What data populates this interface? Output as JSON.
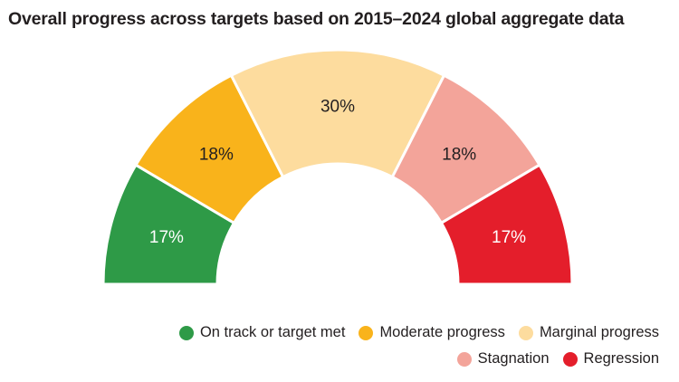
{
  "title": "Overall progress across targets based on 2015–2024 global aggregate data",
  "chart_data": {
    "type": "pie",
    "style": "half-donut",
    "unit": "%",
    "categories": [
      "On track or target met",
      "Moderate progress",
      "Marginal progress",
      "Stagnation",
      "Regression"
    ],
    "values": [
      17,
      18,
      30,
      18,
      17
    ],
    "labels": [
      "17%",
      "18%",
      "30%",
      "18%",
      "17%"
    ],
    "colors": [
      "#2e9a47",
      "#f9b31b",
      "#fddc9e",
      "#f3a49a",
      "#e41e2b"
    ],
    "label_colors": [
      "#ffffff",
      "#231f20",
      "#231f20",
      "#231f20",
      "#ffffff"
    ],
    "legend_position": "bottom-right",
    "legend": {
      "row1": [
        {
          "label": "On track or target met",
          "color": "#2e9a47"
        },
        {
          "label": "Moderate progress",
          "color": "#f9b31b"
        },
        {
          "label": "Marginal progress",
          "color": "#fddc9e"
        }
      ],
      "row2": [
        {
          "label": "Stagnation",
          "color": "#f3a49a"
        },
        {
          "label": "Regression",
          "color": "#e41e2b"
        }
      ]
    }
  }
}
